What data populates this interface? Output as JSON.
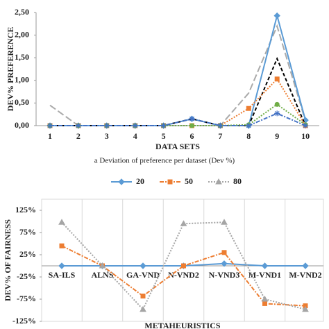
{
  "chart_data": [
    {
      "type": "line",
      "xlabel": "DATA SETS",
      "ylabel": "DEV% PREFERENCE",
      "caption": "a Deviation of preference per dataset (Dev %)",
      "categories": [
        "1",
        "2",
        "3",
        "4",
        "5",
        "6",
        "7",
        "8",
        "9",
        "10"
      ],
      "ylim": [
        0,
        2.5
      ],
      "yticks": [
        {
          "value": 0,
          "label": "0,00"
        },
        {
          "value": 0.5,
          "label": "0,50"
        },
        {
          "value": 1,
          "label": "1,00"
        },
        {
          "value": 1.5,
          "label": "1,50"
        },
        {
          "value": 2,
          "label": "2,00"
        },
        {
          "value": 2.5,
          "label": "2,50"
        }
      ],
      "series": [
        {
          "color": "#aaaaaa",
          "dash": "longdash",
          "marker": "none",
          "values": [
            0.45,
            0,
            0,
            0,
            0,
            0,
            0,
            0.72,
            2.2,
            0.1
          ]
        },
        {
          "color": "#5b9bd5",
          "dash": "solid",
          "marker": "diamond",
          "values": [
            0,
            0,
            0,
            0,
            0,
            0.15,
            0,
            0,
            2.43,
            0.12
          ]
        },
        {
          "color": "#000000",
          "dash": "dashed",
          "marker": "none",
          "values": [
            0,
            0,
            0,
            0,
            0,
            0.15,
            0,
            0,
            1.48,
            0
          ]
        },
        {
          "color": "#ed7d31",
          "dash": "dotted",
          "marker": "square",
          "values": [
            0,
            0,
            0,
            0,
            0,
            0,
            0,
            0.38,
            1.03,
            0
          ]
        },
        {
          "color": "#70ad47",
          "dash": "dotted",
          "marker": "circle",
          "values": [
            0,
            0,
            0,
            0,
            0,
            0,
            0,
            0.02,
            0.47,
            0.02
          ]
        },
        {
          "color": "#4472c4",
          "dash": "dashdot",
          "marker": "star",
          "values": [
            0,
            0,
            0,
            0,
            0,
            0.15,
            0,
            0,
            0.27,
            0
          ]
        }
      ]
    },
    {
      "type": "line",
      "xlabel": "METAHEURISTICS",
      "ylabel": "DEV% OF FAIRNESS",
      "categories": [
        "SA-ILS",
        "ALNS",
        "GA-VND",
        "N-VND2",
        "N-VND3",
        "M-VND1",
        "M-VND2"
      ],
      "ylim": [
        -125,
        150
      ],
      "yticks": [
        {
          "value": 125,
          "label": "125%"
        },
        {
          "value": 75,
          "label": "75%"
        },
        {
          "value": 25,
          "label": "25%"
        },
        {
          "value": -25,
          "label": "-25%"
        },
        {
          "value": -75,
          "label": "-75%"
        },
        {
          "value": -125,
          "label": "-125%"
        }
      ],
      "legend": "top",
      "series": [
        {
          "name": "20",
          "color": "#5b9bd5",
          "dash": "solid",
          "marker": "diamond",
          "values": [
            0,
            0,
            0,
            0,
            5,
            0,
            0
          ]
        },
        {
          "name": "50",
          "color": "#ed7d31",
          "dash": "dashdot",
          "marker": "square",
          "values": [
            45,
            0,
            -68,
            0,
            30,
            -85,
            -90
          ]
        },
        {
          "name": "80",
          "color": "#a5a5a5",
          "dash": "dotted",
          "marker": "triangle",
          "values": [
            98,
            0,
            -98,
            95,
            98,
            -75,
            -98
          ]
        }
      ]
    }
  ]
}
